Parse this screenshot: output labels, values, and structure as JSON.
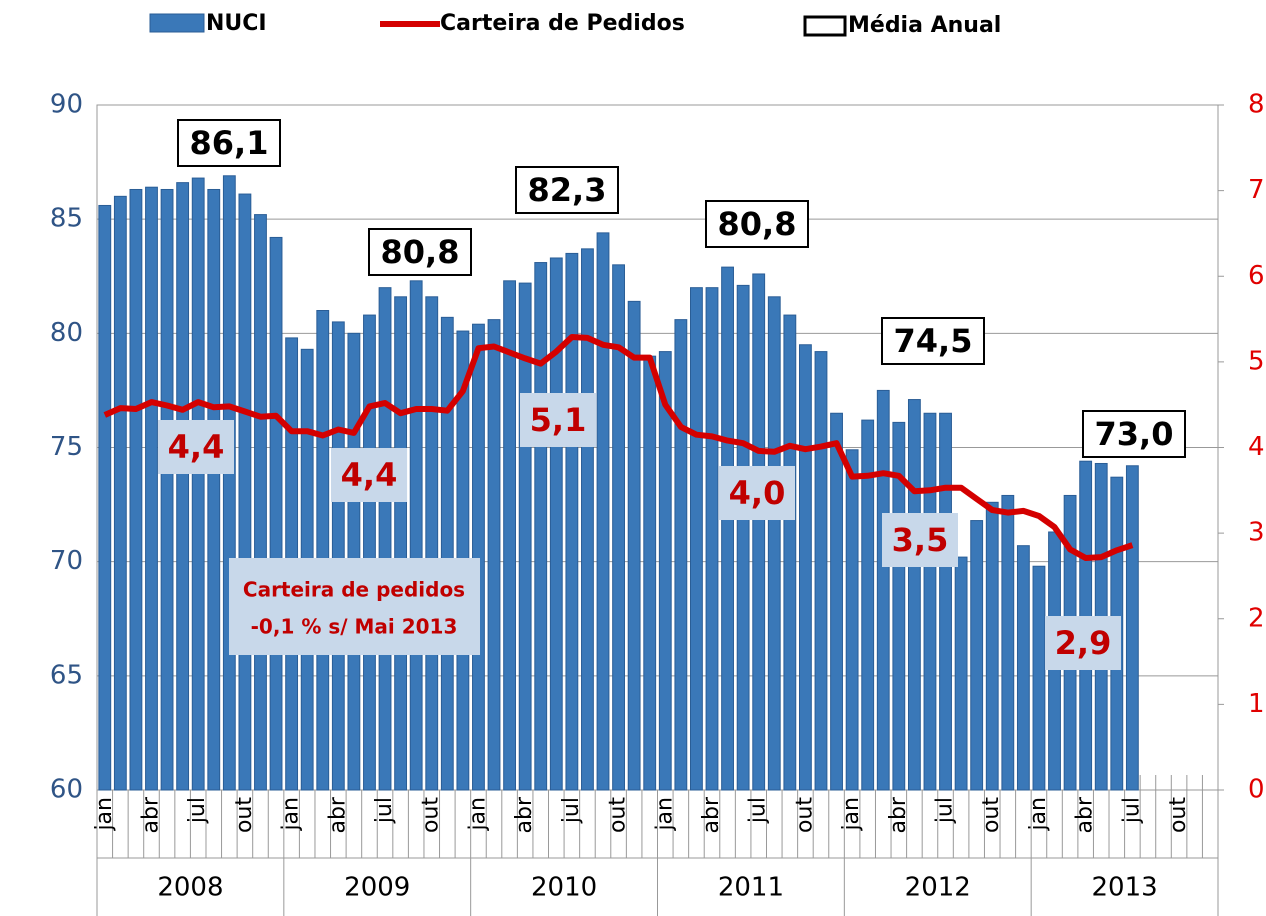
{
  "chart_data": {
    "type": "bar_line",
    "categories": [
      "jan",
      null,
      null,
      "abr",
      null,
      null,
      "jul",
      null,
      null,
      "out",
      null,
      null,
      "jan",
      null,
      null,
      "abr",
      null,
      null,
      "jul",
      null,
      null,
      "out",
      null,
      null,
      "jan",
      null,
      null,
      "abr",
      null,
      null,
      "jul",
      null,
      null,
      "out",
      null,
      null,
      "jan",
      null,
      null,
      "abr",
      null,
      null,
      "jul",
      null,
      null,
      "out",
      null,
      null,
      "jan",
      null,
      null,
      "abr",
      null,
      null,
      "jul",
      null,
      null,
      "out",
      null,
      null,
      "jan",
      null,
      null,
      "abr",
      null,
      null,
      "jul",
      null,
      null,
      "out",
      null,
      null
    ],
    "year_groups": [
      "2008",
      "2009",
      "2010",
      "2011",
      "2012",
      "2013"
    ],
    "series": [
      {
        "name": "NUCI",
        "type": "bar",
        "color": "#3a78b8",
        "values": [
          85.6,
          86.0,
          86.3,
          86.4,
          86.3,
          86.6,
          86.8,
          86.3,
          86.9,
          86.1,
          85.2,
          84.2,
          79.8,
          79.3,
          81.0,
          80.5,
          80.0,
          80.8,
          82.0,
          81.6,
          82.3,
          81.6,
          80.7,
          80.1,
          80.4,
          80.6,
          82.3,
          82.2,
          83.1,
          83.3,
          83.5,
          83.7,
          84.4,
          83.0,
          81.4,
          79.0,
          79.2,
          80.6,
          82.0,
          82.0,
          82.9,
          82.1,
          82.6,
          81.6,
          80.8,
          79.5,
          79.2,
          76.5,
          74.9,
          76.2,
          77.5,
          76.1,
          77.1,
          76.5,
          76.5,
          70.2,
          71.8,
          72.6,
          72.9,
          70.7,
          69.8,
          71.3,
          72.9,
          74.4,
          74.3,
          73.7,
          74.2,
          null,
          null,
          null,
          null,
          null
        ]
      },
      {
        "name": "Carteira de Pedidos",
        "type": "line",
        "axis": "y2",
        "color": "#d40000",
        "values": [
          4.38,
          4.46,
          4.45,
          4.53,
          4.49,
          4.44,
          4.53,
          4.47,
          4.48,
          4.42,
          4.36,
          4.37,
          4.19,
          4.19,
          4.14,
          4.21,
          4.17,
          4.48,
          4.52,
          4.4,
          4.45,
          4.45,
          4.43,
          4.66,
          5.16,
          5.18,
          5.11,
          5.04,
          4.98,
          5.12,
          5.29,
          5.28,
          5.2,
          5.17,
          5.05,
          5.05,
          4.5,
          4.24,
          4.15,
          4.13,
          4.08,
          4.05,
          3.96,
          3.95,
          4.02,
          3.98,
          4.01,
          4.05,
          3.66,
          3.67,
          3.7,
          3.67,
          3.49,
          3.5,
          3.53,
          3.53,
          3.4,
          3.27,
          3.24,
          3.26,
          3.2,
          3.07,
          2.81,
          2.71,
          2.72,
          2.8,
          2.86,
          null,
          null,
          null,
          null,
          null
        ]
      }
    ],
    "annual_averages": {
      "name": "Média Anual",
      "values": [
        86.1,
        80.8,
        82.3,
        80.8,
        74.5,
        73.0
      ],
      "value_labels": [
        "86,1",
        "80,8",
        "82,3",
        "80,8",
        "74,5",
        "73,0"
      ]
    },
    "order_book_annual": {
      "values": [
        4.4,
        4.4,
        5.1,
        4.0,
        3.5,
        2.9
      ],
      "value_labels": [
        "4,4",
        "4,4",
        "5,1",
        "4,0",
        "3,5",
        "2,9"
      ]
    },
    "annotation": [
      "Carteira de pedidos",
      "-0,1 % s/ Mai 2013"
    ],
    "ylim": [
      60,
      90
    ],
    "yticks": [
      60,
      65,
      70,
      75,
      80,
      85,
      90
    ],
    "y2lim": [
      0,
      8
    ],
    "y2ticks": [
      0,
      1,
      2,
      3,
      4,
      5,
      6,
      7,
      8
    ],
    "grid": true
  }
}
